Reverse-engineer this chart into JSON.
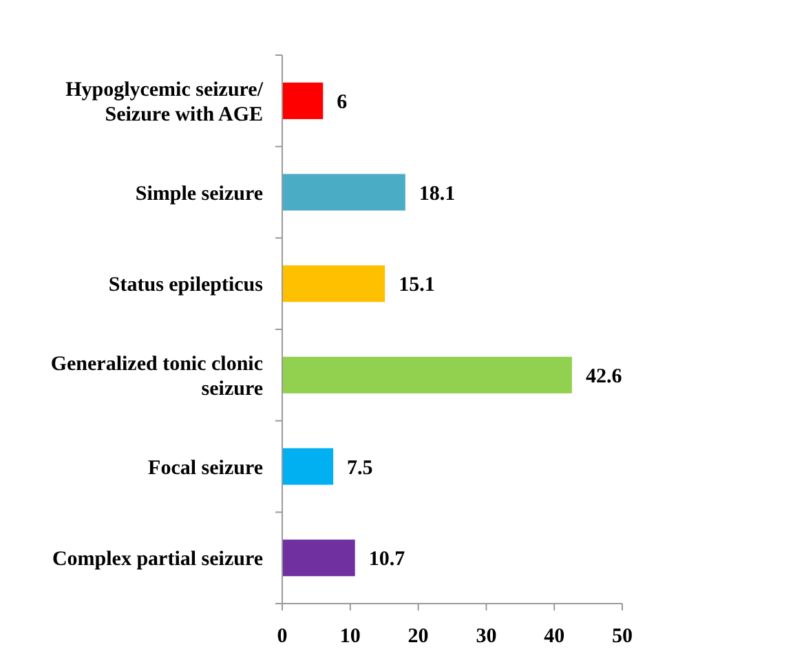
{
  "chart_data": {
    "type": "bar",
    "orientation": "horizontal",
    "categories": [
      "Hypoglycemic seizure/ Seizure with AGE",
      "Simple seizure",
      "Status epilepticus",
      "Generalized tonic clonic seizure",
      "Focal seizure",
      "Complex partial seizure"
    ],
    "values": [
      6,
      18.1,
      15.1,
      42.6,
      7.5,
      10.7
    ],
    "colors": [
      "#ff0000",
      "#4bacc6",
      "#ffc000",
      "#92d050",
      "#00b0f0",
      "#7030a0"
    ],
    "xlim": [
      0,
      50
    ],
    "xticks": [
      0,
      10,
      20,
      30,
      40,
      50
    ],
    "data_labels": true
  }
}
